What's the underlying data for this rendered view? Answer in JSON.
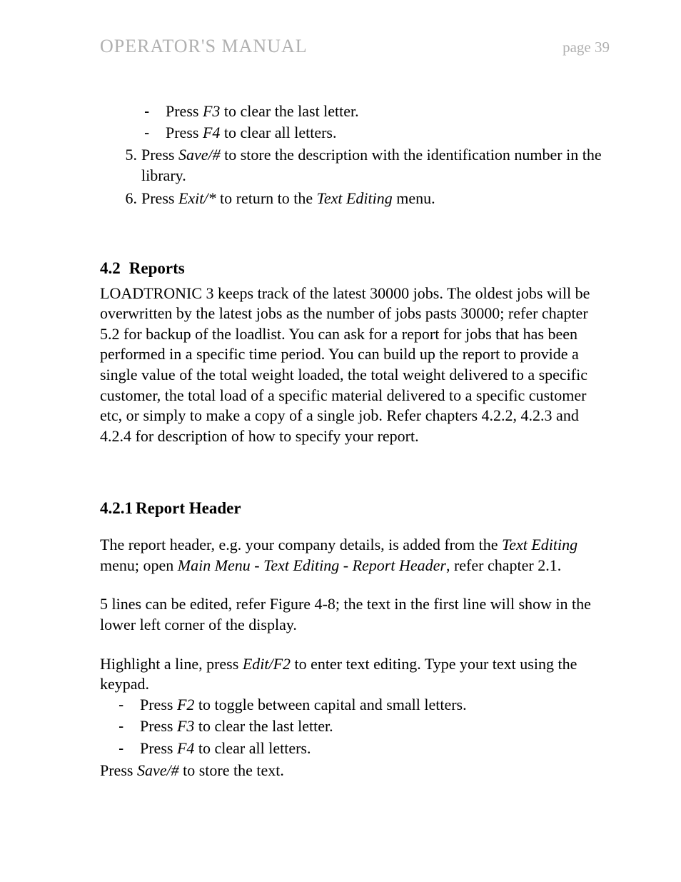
{
  "page": {
    "header_title": "OPERATOR'S MANUAL",
    "header_page": "page 39"
  },
  "top_list": {
    "dash1_pre": "Press ",
    "dash1_ital": "F3",
    "dash1_post": " to clear the last letter.",
    "dash2_pre": "Press ",
    "dash2_ital": "F4",
    "dash2_post": " to clear all letters.",
    "ol5_marker": "5.",
    "ol5_pre": "Press ",
    "ol5_ital": "Save/#",
    "ol5_post": " to store the description with the identification number in the library.",
    "ol6_marker": "6.",
    "ol6_pre": "Press ",
    "ol6_ital1": "Exit/*",
    "ol6_mid": " to return to the ",
    "ol6_ital2": "Text Editing",
    "ol6_post": " menu."
  },
  "section42": {
    "num": "4.2",
    "title": "Reports",
    "body": "LOADTRONIC 3 keeps track of the latest 30000 jobs. The oldest jobs will be overwritten by the latest jobs as the number of jobs pasts 30000; refer chapter 5.2 for backup of the loadlist. You can ask for a report for jobs that has been performed in a specific time period. You can build up the report to provide a single value of the total weight loaded, the total weight delivered to a specific customer, the total load of a specific material delivered to a specific customer etc, or simply to make a copy of a single job. Refer chapters 4.2.2, 4.2.3 and 4.2.4 for description of how to specify your report."
  },
  "section421": {
    "num": "4.2.1",
    "title": "Report Header",
    "p1_pre": "The report header, e.g. your company details, is added from the ",
    "p1_ital1": "Text Editing",
    "p1_mid1": " menu; open ",
    "p1_ital2": "Main Menu",
    "p1_mid2": " - ",
    "p1_ital3": "Text Editing - Report Header",
    "p1_post": ", refer chapter 2.1.",
    "p2": "5 lines can be edited, refer Figure 4-8; the text in the first line will show in the lower left corner of the display.",
    "p3_pre": "Highlight a line, press ",
    "p3_ital": "Edit/F2",
    "p3_post": " to enter text editing. Type your text using the keypad.",
    "d1_pre": "Press ",
    "d1_ital": "F2",
    "d1_post": " to toggle between capital and small letters.",
    "d2_pre": "Press ",
    "d2_ital": "F3",
    "d2_post": " to clear the last letter.",
    "d3_pre": "Press ",
    "d3_ital": "F4",
    "d3_post": " to clear all letters.",
    "p4_pre": "Press ",
    "p4_ital": "Save/#",
    "p4_post": " to store the text."
  },
  "style": {
    "header_color": "#b0b0b0",
    "text_color": "#000000",
    "bg_color": "#ffffff",
    "body_fontsize": 22,
    "header_title_fontsize": 26,
    "header_page_fontsize": 21,
    "heading_fontsize": 23,
    "font_family": "Times New Roman"
  }
}
